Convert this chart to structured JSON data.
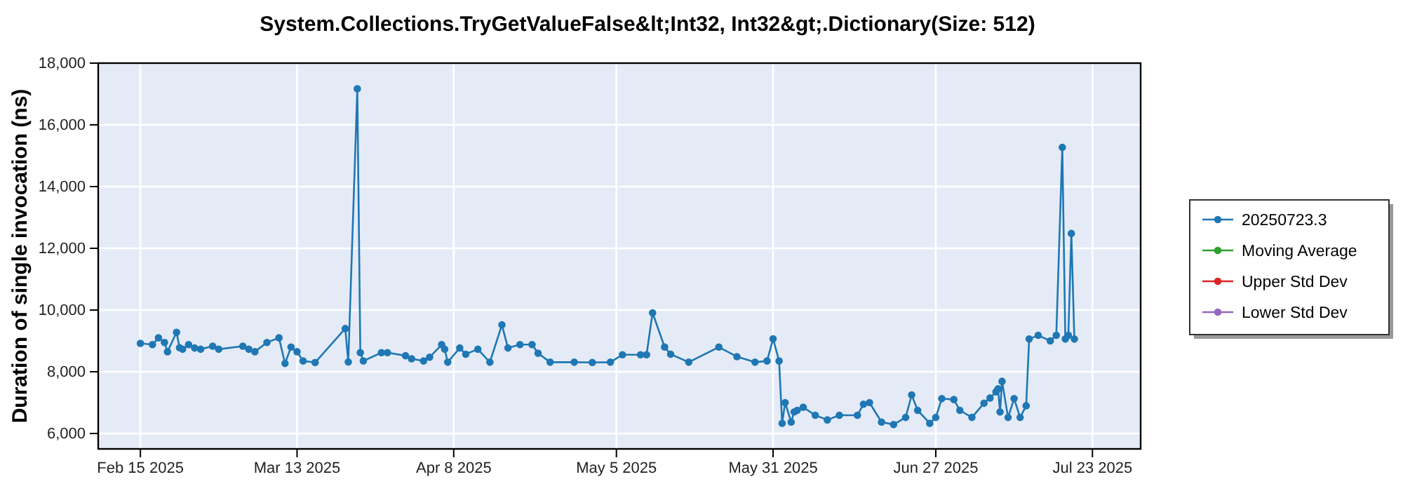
{
  "chart_data": {
    "type": "line",
    "title": "System.Collections.TryGetValueFalse&lt;Int32, Int32&gt;.Dictionary(Size: 512)",
    "ylabel": "Duration of single invocation (ns)",
    "xlim": [
      "2025-02-08",
      "2025-07-31"
    ],
    "ylim": [
      5500,
      18000
    ],
    "xticks": [
      {
        "value": "2025-02-15",
        "label": "Feb 15 2025"
      },
      {
        "value": "2025-03-13",
        "label": "Mar 13 2025"
      },
      {
        "value": "2025-04-08",
        "label": "Apr 8 2025"
      },
      {
        "value": "2025-05-05",
        "label": "May 5 2025"
      },
      {
        "value": "2025-05-31",
        "label": "May 31 2025"
      },
      {
        "value": "2025-06-27",
        "label": "Jun 27 2025"
      },
      {
        "value": "2025-07-23",
        "label": "Jul 23 2025"
      }
    ],
    "yticks": [
      {
        "value": 6000,
        "label": "6,000"
      },
      {
        "value": 8000,
        "label": "8,000"
      },
      {
        "value": 10000,
        "label": "10,000"
      },
      {
        "value": 12000,
        "label": "12,000"
      },
      {
        "value": 14000,
        "label": "14,000"
      },
      {
        "value": 16000,
        "label": "16,000"
      },
      {
        "value": 18000,
        "label": "18,000"
      }
    ],
    "grid": true,
    "legend": "right",
    "marker": "circle",
    "line_style": "solid",
    "series": [
      {
        "name": "20250723.3",
        "color": "#1f77b4",
        "x": [
          "2025-02-15",
          "2025-02-17",
          "2025-02-18",
          "2025-02-19T00:00",
          "2025-02-19T12:00",
          "2025-02-21T00:00",
          "2025-02-21T12:00",
          "2025-02-22",
          "2025-02-23",
          "2025-02-24",
          "2025-02-25",
          "2025-02-27",
          "2025-02-28",
          "2025-03-04",
          "2025-03-05",
          "2025-03-06",
          "2025-03-08",
          "2025-03-10",
          "2025-03-11",
          "2025-03-12",
          "2025-03-13",
          "2025-03-14",
          "2025-03-16",
          "2025-03-21T00:00",
          "2025-03-21T12:00",
          "2025-03-23T00:00",
          "2025-03-23T12:00",
          "2025-03-24",
          "2025-03-27",
          "2025-03-28",
          "2025-03-31",
          "2025-04-01",
          "2025-04-03",
          "2025-04-04",
          "2025-04-06T00:00",
          "2025-04-06T12:00",
          "2025-04-07",
          "2025-04-09",
          "2025-04-10",
          "2025-04-12",
          "2025-04-14",
          "2025-04-16",
          "2025-04-17",
          "2025-04-19",
          "2025-04-21",
          "2025-04-22",
          "2025-04-24",
          "2025-04-28",
          "2025-05-01",
          "2025-05-04",
          "2025-05-06",
          "2025-05-09",
          "2025-05-10",
          "2025-05-11",
          "2025-05-13",
          "2025-05-14",
          "2025-05-17",
          "2025-05-22",
          "2025-05-25",
          "2025-05-28",
          "2025-05-30",
          "2025-05-31",
          "2025-06-01T00:00",
          "2025-06-01T12:00",
          "2025-06-02",
          "2025-06-03T00:00",
          "2025-06-03T12:00",
          "2025-06-04",
          "2025-06-05",
          "2025-06-07",
          "2025-06-09",
          "2025-06-11",
          "2025-06-14",
          "2025-06-15",
          "2025-06-16",
          "2025-06-18",
          "2025-06-20",
          "2025-06-22",
          "2025-06-23",
          "2025-06-24",
          "2025-06-26",
          "2025-06-27",
          "2025-06-28",
          "2025-06-30",
          "2025-07-01",
          "2025-07-03",
          "2025-07-05",
          "2025-07-06",
          "2025-07-07T00:00",
          "2025-07-07T08:00",
          "2025-07-07T16:00",
          "2025-07-08",
          "2025-07-09",
          "2025-07-10",
          "2025-07-11",
          "2025-07-12T00:00",
          "2025-07-12T12:00",
          "2025-07-14",
          "2025-07-16",
          "2025-07-17",
          "2025-07-18T00:00",
          "2025-07-18T12:00",
          "2025-07-19T00:00",
          "2025-07-19T12:00",
          "2025-07-20"
        ],
        "values": [
          8920,
          8880,
          9100,
          8950,
          8650,
          9280,
          8780,
          8730,
          8880,
          8770,
          8730,
          8830,
          8730,
          8830,
          8730,
          8650,
          8950,
          9100,
          8270,
          8800,
          8650,
          8350,
          8300,
          9400,
          8320,
          17170,
          8620,
          8350,
          8620,
          8620,
          8520,
          8420,
          8350,
          8470,
          8880,
          8730,
          8310,
          8770,
          8570,
          8730,
          8310,
          9520,
          8770,
          8880,
          8880,
          8600,
          8310,
          8310,
          8300,
          8310,
          8550,
          8550,
          8550,
          9910,
          8800,
          8570,
          8310,
          8800,
          8490,
          8310,
          8350,
          9070,
          8350,
          6330,
          7000,
          6370,
          6700,
          6750,
          6850,
          6590,
          6440,
          6590,
          6590,
          6950,
          7000,
          6370,
          6290,
          6520,
          7250,
          6750,
          6330,
          6520,
          7130,
          7100,
          6750,
          6520,
          6980,
          7150,
          7350,
          7450,
          6700,
          7690,
          6520,
          7130,
          6520,
          6900,
          9060,
          9180,
          9000,
          9180,
          15270,
          9060,
          9180,
          12480,
          9060
        ]
      },
      {
        "name": "Moving Average",
        "color": "#2ca02c"
      },
      {
        "name": "Upper Std Dev",
        "color": "#d62728"
      },
      {
        "name": "Lower Std Dev",
        "color": "#9467bd"
      }
    ]
  }
}
